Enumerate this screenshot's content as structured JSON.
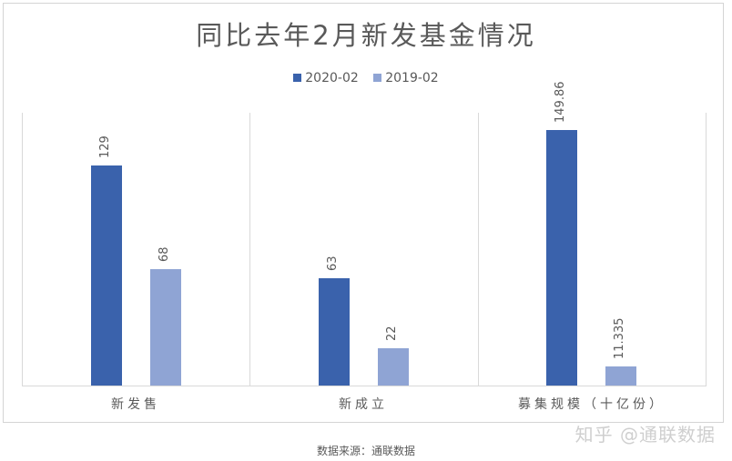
{
  "chart_data": {
    "type": "bar",
    "title": "同比去年2月新发基金情况",
    "categories": [
      "新发售",
      "新成立",
      "募集规模（十亿份）"
    ],
    "series": [
      {
        "name": "2020-02",
        "color": "#3A62AC",
        "values": [
          129,
          63,
          149.86
        ],
        "labels": [
          "129",
          "63",
          "149.86"
        ]
      },
      {
        "name": "2019-02",
        "color": "#8FA4D4",
        "values": [
          68,
          22,
          11.335
        ],
        "labels": [
          "68",
          "22",
          "11.335"
        ]
      }
    ],
    "xlabel": "",
    "ylabel": "",
    "ylim": [
      0,
      160
    ],
    "grid": false,
    "legend_position": "top",
    "data_labels": "rotated -90, above bars"
  },
  "source_note": "数据来源：通联数据",
  "watermark": "知乎 @通联数据"
}
